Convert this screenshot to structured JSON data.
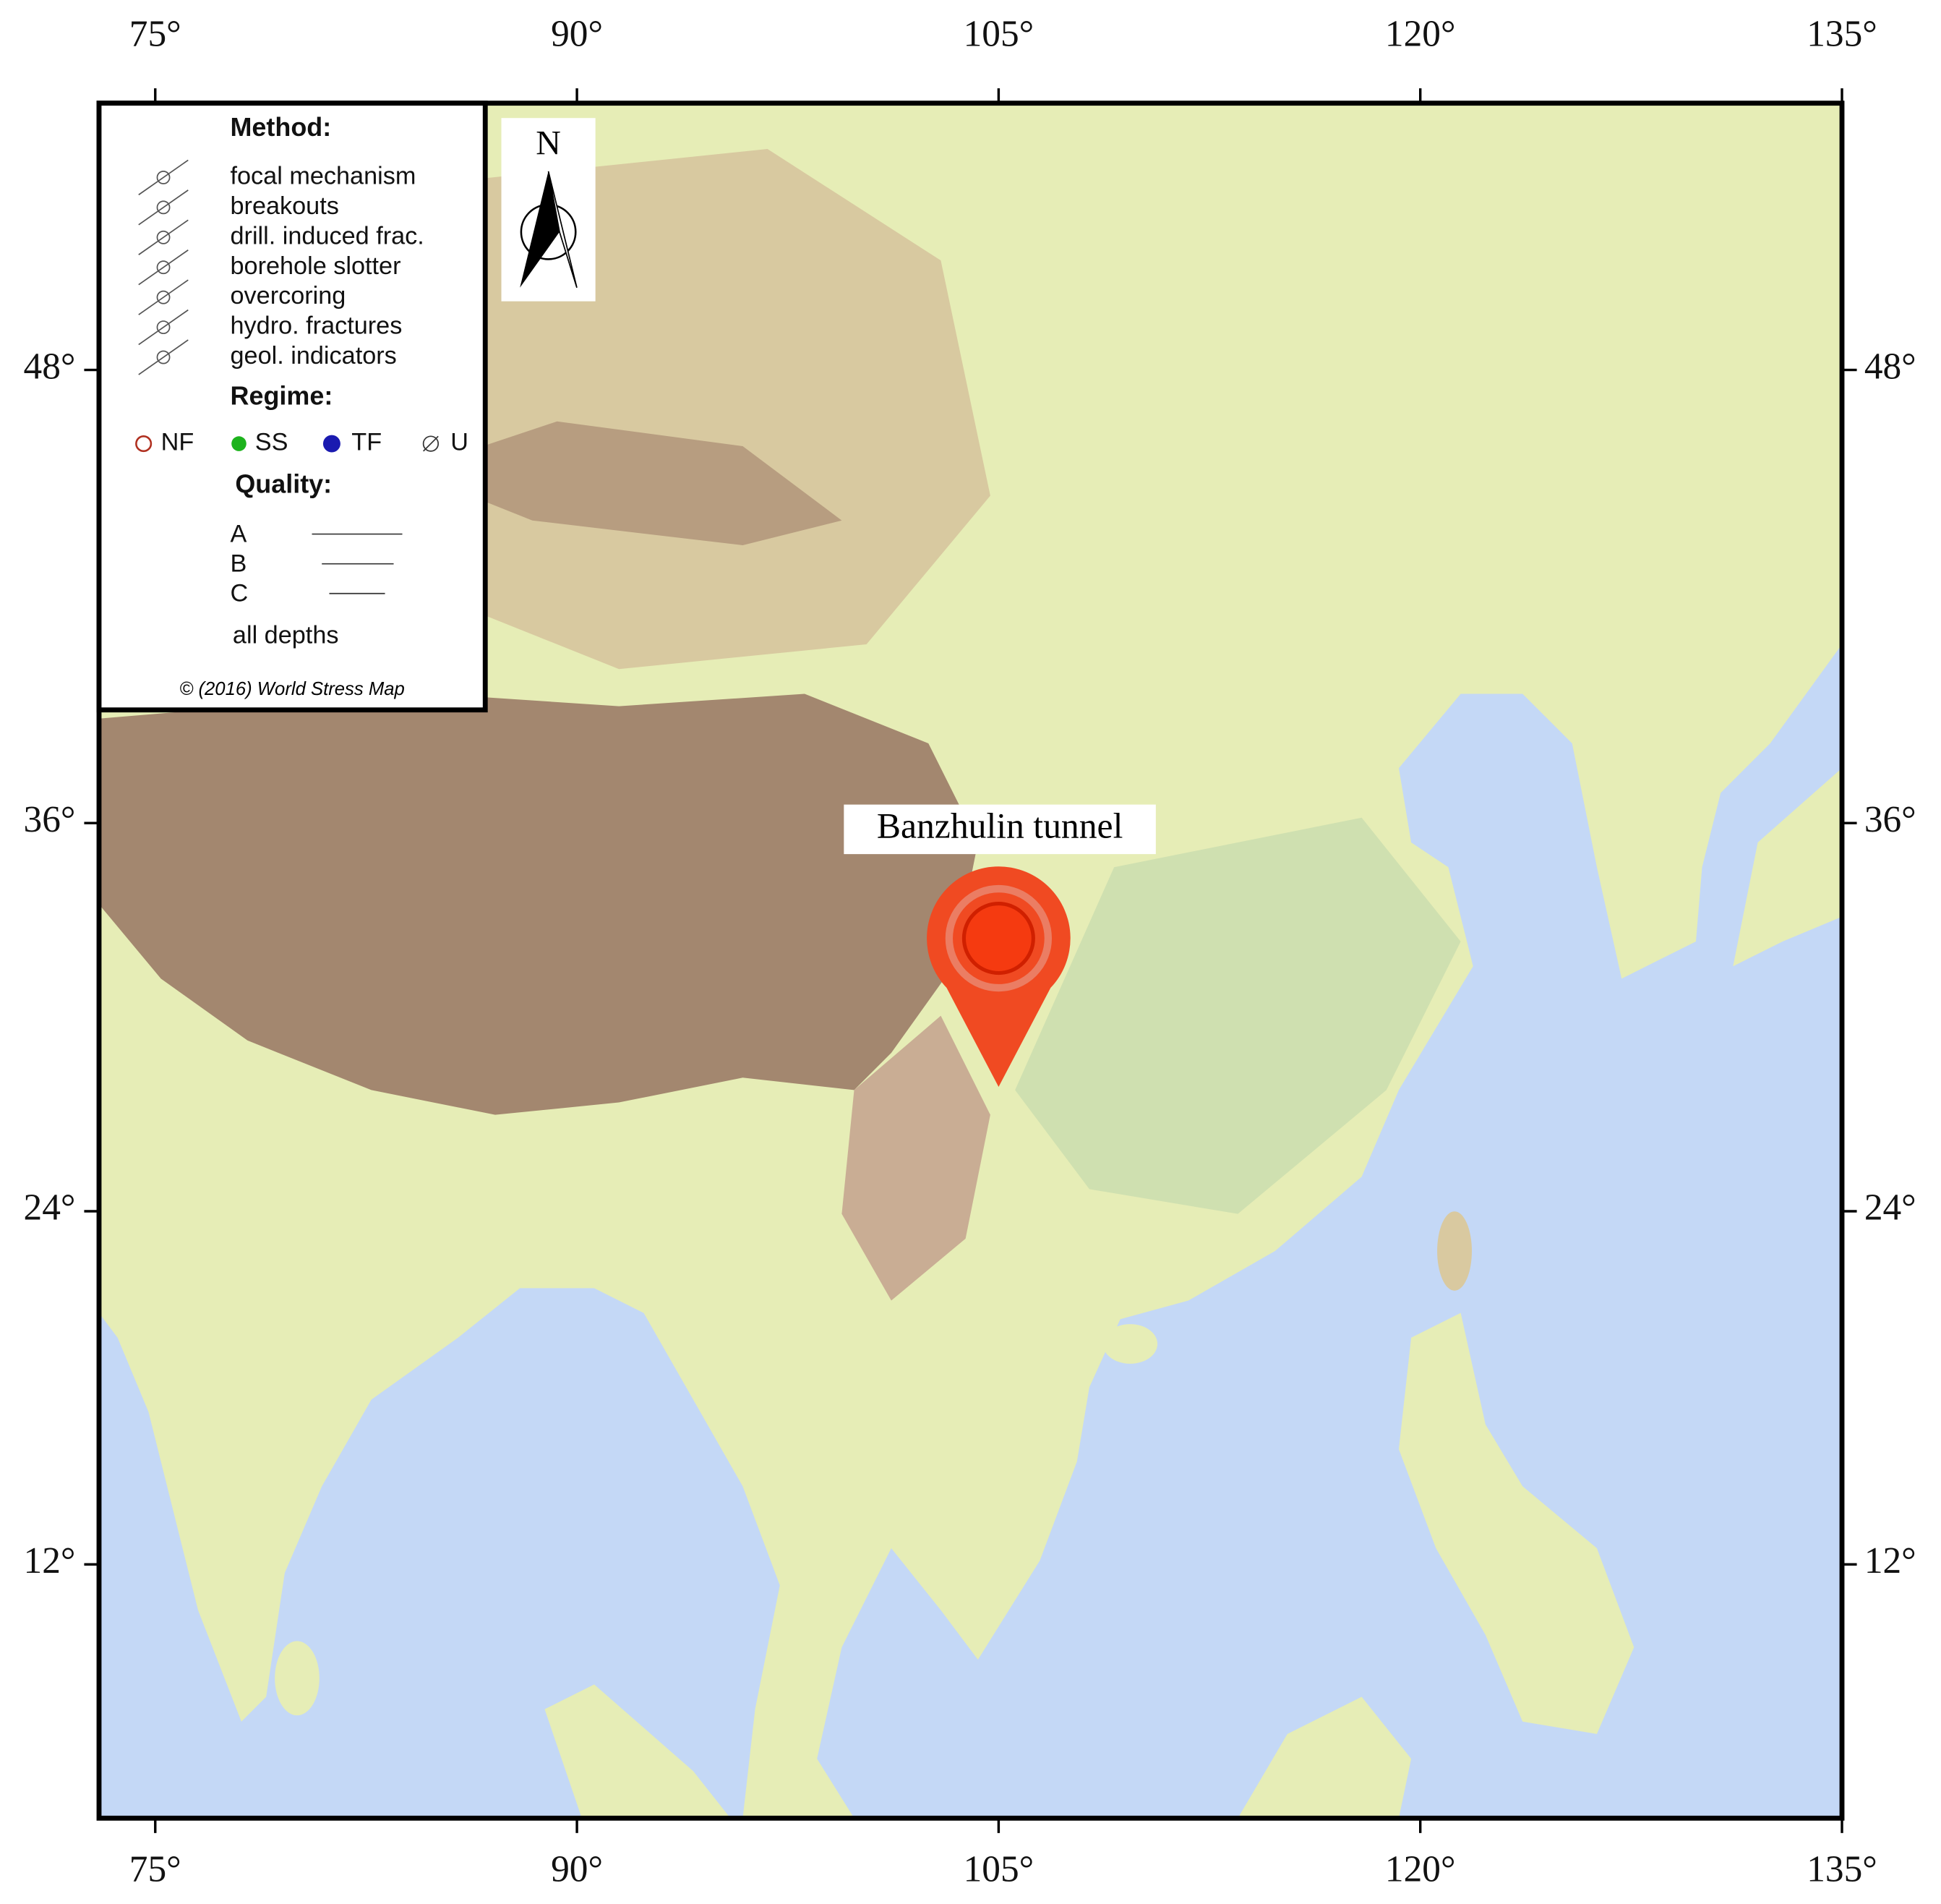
{
  "map": {
    "projection": "mercator",
    "xlim": [
      73,
      135
    ],
    "ylim": [
      3,
      54
    ],
    "xticks": [
      {
        "value": 75,
        "label": "75°"
      },
      {
        "value": 90,
        "label": "90°"
      },
      {
        "value": 105,
        "label": "105°"
      },
      {
        "value": 120,
        "label": "120°"
      },
      {
        "value": 135,
        "label": "135°"
      }
    ],
    "yticks": [
      {
        "value": 12,
        "label": "12°"
      },
      {
        "value": 24,
        "label": "24°"
      },
      {
        "value": 36,
        "label": "36°"
      },
      {
        "value": 48,
        "label": "48°"
      }
    ],
    "legend": {
      "method_title": "Method:",
      "methods": [
        "focal mechanism",
        "breakouts",
        "drill. induced frac.",
        "borehole slotter",
        "overcoring",
        "hydro. fractures",
        "geol. indicators"
      ],
      "regime_title": "Regime:",
      "regimes": [
        "NF",
        "SS",
        "TF",
        "U"
      ],
      "quality_title": "Quality:",
      "qualities": [
        "A",
        "B",
        "C"
      ],
      "depth": "all depths",
      "credit": "© (2016) World Stress Map"
    },
    "north": "N",
    "site": {
      "label": "Banzhulin tunnel",
      "lon": 105,
      "lat": 28
    }
  }
}
